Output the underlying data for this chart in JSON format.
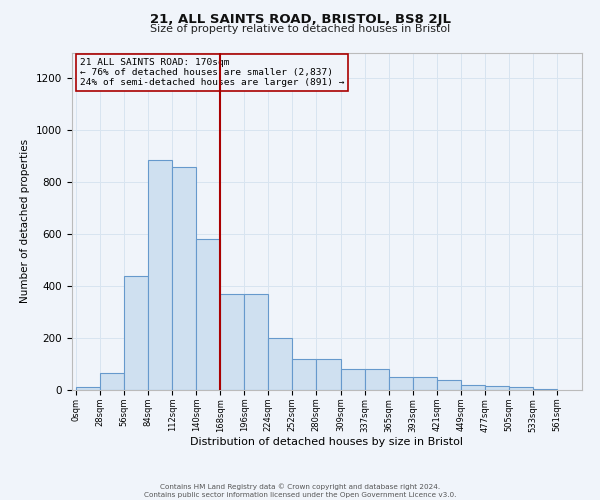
{
  "title_line1": "21, ALL SAINTS ROAD, BRISTOL, BS8 2JL",
  "title_line2": "Size of property relative to detached houses in Bristol",
  "xlabel": "Distribution of detached houses by size in Bristol",
  "ylabel": "Number of detached properties",
  "footer_line1": "Contains HM Land Registry data © Crown copyright and database right 2024.",
  "footer_line2": "Contains public sector information licensed under the Open Government Licence v3.0.",
  "annotation_line1": "21 ALL SAINTS ROAD: 170sqm",
  "annotation_line2": "← 76% of detached houses are smaller (2,837)",
  "annotation_line3": "24% of semi-detached houses are larger (891) →",
  "property_size": 170,
  "bar_left_edges": [
    0,
    28,
    56,
    84,
    112,
    140,
    168,
    196,
    224,
    252,
    280,
    309,
    337,
    365,
    393,
    421,
    449,
    477,
    505,
    533
  ],
  "bar_heights": [
    10,
    65,
    440,
    885,
    860,
    580,
    370,
    370,
    200,
    120,
    120,
    80,
    80,
    50,
    50,
    38,
    20,
    15,
    10,
    3
  ],
  "bar_color": "#cfe0f0",
  "bar_edge_color": "#6699cc",
  "vline_x": 168,
  "vline_color": "#aa0000",
  "ylim": [
    0,
    1300
  ],
  "xlim": [
    -5,
    590
  ],
  "yticks": [
    0,
    200,
    400,
    600,
    800,
    1000,
    1200
  ],
  "xtick_labels": [
    "0sqm",
    "28sqm",
    "56sqm",
    "84sqm",
    "112sqm",
    "140sqm",
    "168sqm",
    "196sqm",
    "224sqm",
    "252sqm",
    "280sqm",
    "309sqm",
    "337sqm",
    "365sqm",
    "393sqm",
    "421sqm",
    "449sqm",
    "477sqm",
    "505sqm",
    "533sqm",
    "561sqm"
  ],
  "xtick_positions": [
    0,
    28,
    56,
    84,
    112,
    140,
    168,
    196,
    224,
    252,
    280,
    309,
    337,
    365,
    393,
    421,
    449,
    477,
    505,
    533,
    561
  ],
  "grid_color": "#d8e4f0",
  "background_color": "#f0f4fa"
}
